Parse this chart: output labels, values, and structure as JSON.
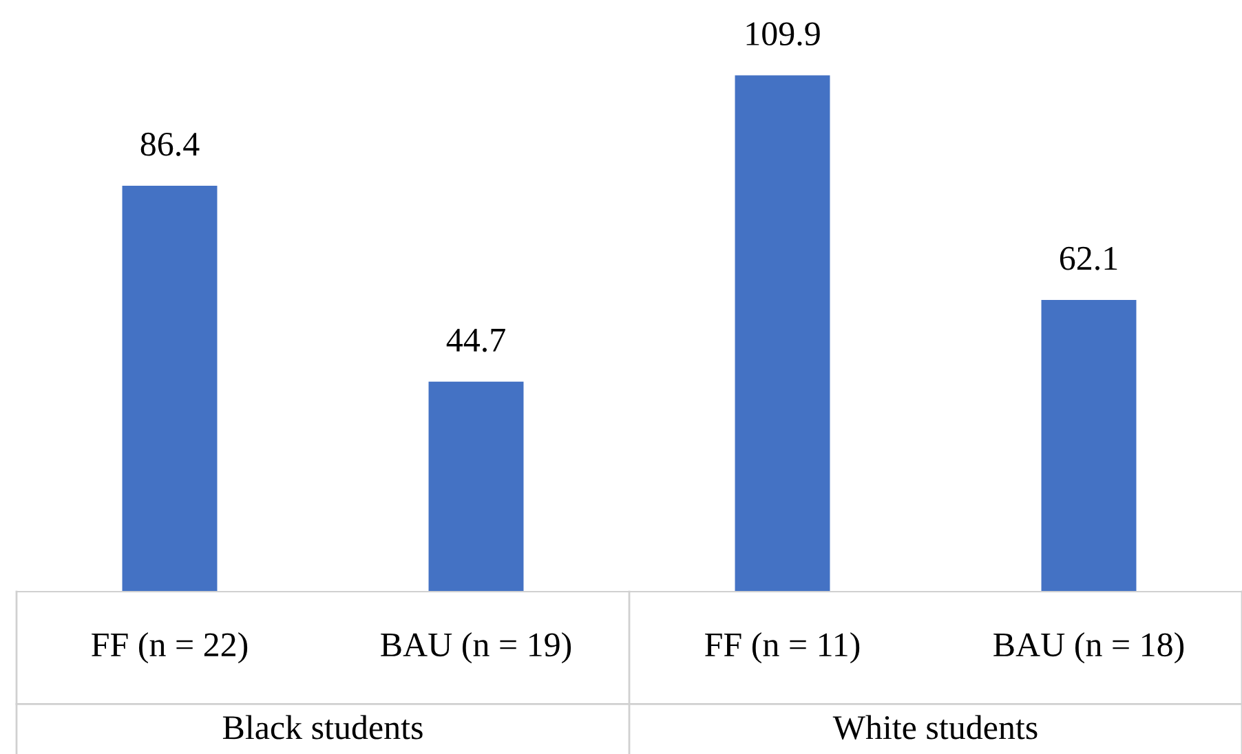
{
  "chart_data": {
    "type": "bar",
    "categories": [
      "FF (n = 22)",
      "BAU (n = 19)",
      "FF (n = 11)",
      "BAU (n = 18)"
    ],
    "values": [
      86.4,
      44.7,
      109.9,
      62.1
    ],
    "color": "#4472c4",
    "data_labels": true,
    "annotations": [
      "Black students",
      "White students"
    ]
  }
}
